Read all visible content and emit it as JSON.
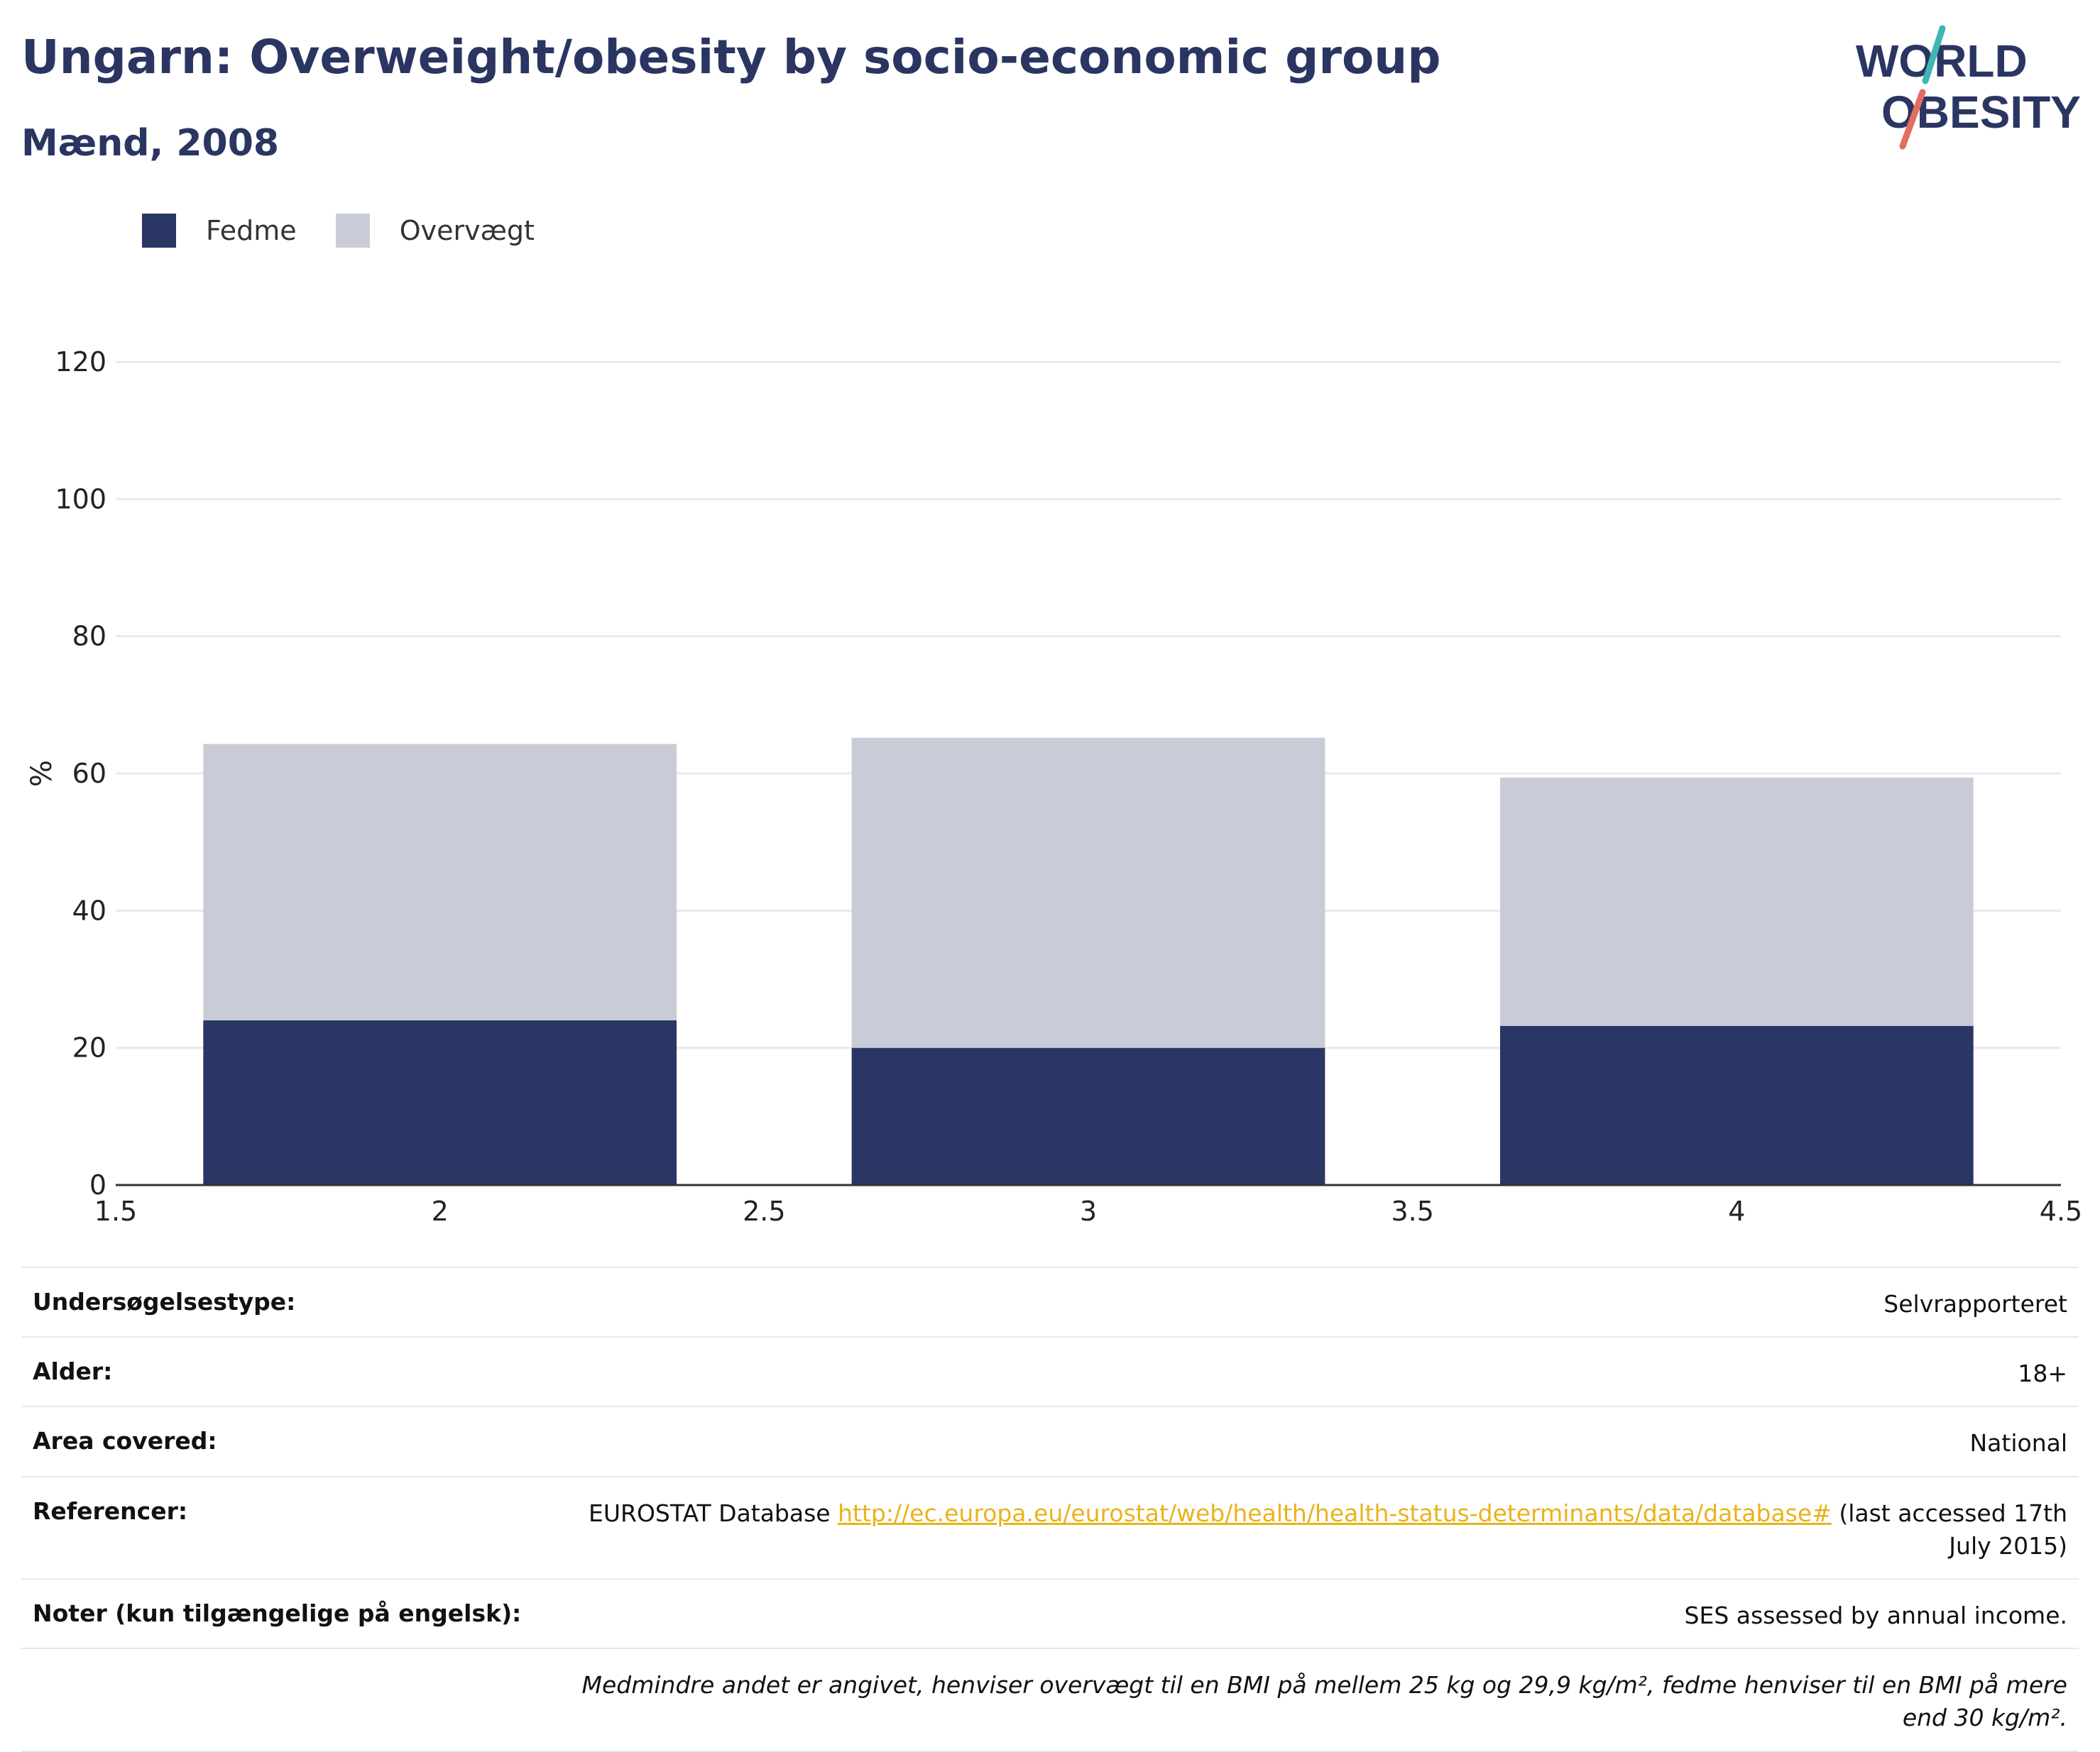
{
  "header": {
    "title": "Ungarn: Overweight/obesity by socio-economic group",
    "subtitle": "Mænd, 2008"
  },
  "logo": {
    "line1": "WORLD",
    "line2": "OBESITY",
    "colors": {
      "text": "#2b3562",
      "slash_top": "#3fb6b3",
      "slash_bottom": "#e26e5c"
    }
  },
  "colors": {
    "fedme": "#2a3663",
    "overvaegt": "#c9ccd7",
    "axis": "#333333",
    "grid": "#e8eaef"
  },
  "legend": [
    {
      "label": "Fedme",
      "color": "#2a3663"
    },
    {
      "label": "Overvægt",
      "color": "#c9ccd7"
    }
  ],
  "chart_data": {
    "type": "bar",
    "stacked": true,
    "x": [
      2,
      3,
      4
    ],
    "bar_width": 0.73,
    "series": [
      {
        "name": "Fedme",
        "values": [
          24,
          20,
          23.2
        ]
      },
      {
        "name": "Overvægt",
        "values": [
          40.3,
          45.2,
          36.2
        ]
      }
    ],
    "xlim": [
      1.5,
      4.5
    ],
    "xticks": [
      "1.5",
      "2",
      "2.5",
      "3",
      "3.5",
      "4",
      "4.5"
    ],
    "ylim": [
      0,
      120
    ],
    "yticks": [
      "0",
      "20",
      "40",
      "60",
      "80",
      "100",
      "120"
    ],
    "ylabel": "%",
    "grid": true,
    "legend_position": "top-left"
  },
  "info": {
    "rows": [
      {
        "key": "Undersøgelsestype:",
        "value": "Selvrapporteret"
      },
      {
        "key": "Alder:",
        "value": "18+"
      },
      {
        "key": "Area covered:",
        "value": "National"
      },
      {
        "key": "Referencer:",
        "value_prefix": "EUROSTAT Database ",
        "link": "http://ec.europa.eu/eurostat/web/health/health-status-determinants/data/database#",
        "value_suffix": " (last accessed 17th July 2015)"
      },
      {
        "key": "Noter (kun tilgængelige på engelsk):",
        "value": "SES assessed by annual income."
      }
    ],
    "footnote": "Medmindre andet er angivet, henviser overvægt til en BMI på mellem 25 kg og 29,9 kg/m², fedme henviser til en BMI på mere end 30 kg/m²."
  }
}
